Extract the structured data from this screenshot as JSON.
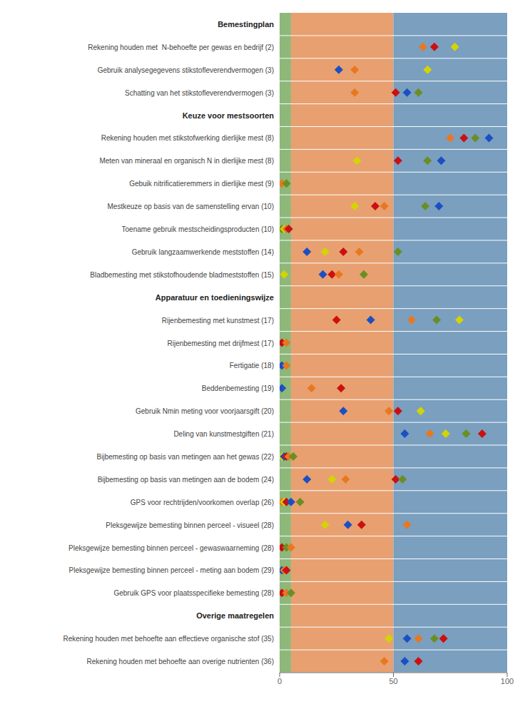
{
  "chart_data": {
    "type": "scatter",
    "marker": "diamond",
    "grid": false,
    "xlim": [
      0,
      100
    ],
    "xticks": [
      0,
      50,
      100
    ],
    "bands": [
      {
        "from": 0,
        "to": 5,
        "color": "#8DB87A"
      },
      {
        "from": 5,
        "to": 50,
        "color": "#E8A070"
      },
      {
        "from": 50,
        "to": 100,
        "color": "#7A9FBF"
      }
    ],
    "headers": [
      "Bemestingplan",
      "Keuze voor mestsoorten",
      "Apparatuur en toedieningswijze",
      "Overige maatregelen"
    ],
    "categories": [
      "Bemestingplan",
      "Rekening houden met  N-behoefte per gewas en bedrijf (2)",
      "Gebruik analysegegevens stikstofleverendvermogen (3)",
      "Schatting van het stikstofleverendvermogen (3)",
      "Keuze voor mestsoorten",
      "Rekening houden met stikstofwerking dierlijke mest (8)",
      "Meten van mineraal en organisch N in dierlijke mest (8)",
      "Gebuik nitrificatieremmers in dierlijke mest (9)",
      "Mestkeuze op basis van de samenstelling ervan (10)",
      "Toename gebruik mestscheidingsproducten (10)",
      "Gebruik langzaamwerkende meststoffen (14)",
      "Bladbemesting met stikstofhoudende bladmeststoffen (15)",
      "Apparatuur en toedieningswijze",
      "Rijenbemesting met kunstmest (17)",
      "Rijenbemesting met drijfmest (17)",
      "Fertigatie (18)",
      "Beddenbemesting (19)",
      "Gebruik Nmin meting voor voorjaarsgift (20)",
      "Deling van kunstmestgiften (21)",
      "Bijbemesting op basis van metingen aan het gewas (22)",
      "Bijbemesting op basis van metingen aan de bodem (24)",
      "GPS voor rechtrijden/voorkomen overlap (26)",
      "Pleksgewijze bemesting binnen perceel - visueel (28)",
      "Pleksgewijze bemesting binnen perceel - gewaswaarneming (28)",
      "Pleksgewijze bemesting binnen perceel - meting aan bodem (29)",
      "Gebruik GPS voor plaatsspecifieke bemesting (28)",
      "Overige maatregelen",
      "Rekening houden met behoefte aan effectieve organische stof (35)",
      "Rekening houden met behoefte aan overige nutrienten (36)"
    ],
    "points": [
      [],
      [
        {
          "x": 63,
          "color": "#E87820"
        },
        {
          "x": 68,
          "color": "#CC1010"
        },
        {
          "x": 77,
          "color": "#D4D400"
        }
      ],
      [
        {
          "x": 26,
          "color": "#1C4FC4"
        },
        {
          "x": 33,
          "color": "#E87820"
        },
        {
          "x": 65,
          "color": "#D4D400"
        }
      ],
      [
        {
          "x": 33,
          "color": "#E87820"
        },
        {
          "x": 51,
          "color": "#CC1010"
        },
        {
          "x": 56,
          "color": "#1C4FC4"
        },
        {
          "x": 61,
          "color": "#6B8E23"
        }
      ],
      [],
      [
        {
          "x": 75,
          "color": "#E87820"
        },
        {
          "x": 81,
          "color": "#CC1010"
        },
        {
          "x": 86,
          "color": "#6B8E23"
        },
        {
          "x": 92,
          "color": "#1C4FC4"
        }
      ],
      [
        {
          "x": 34,
          "color": "#D4D400"
        },
        {
          "x": 52,
          "color": "#CC1010"
        },
        {
          "x": 65,
          "color": "#6B8E23"
        },
        {
          "x": 71,
          "color": "#1C4FC4"
        }
      ],
      [
        {
          "x": 1,
          "color": "#E87820"
        },
        {
          "x": 3,
          "color": "#6B8E23"
        }
      ],
      [
        {
          "x": 33,
          "color": "#D4D400"
        },
        {
          "x": 42,
          "color": "#CC1010"
        },
        {
          "x": 46,
          "color": "#E87820"
        },
        {
          "x": 64,
          "color": "#6B8E23"
        },
        {
          "x": 70,
          "color": "#1C4FC4"
        }
      ],
      [
        {
          "x": 1,
          "color": "#6B8E23"
        },
        {
          "x": 2,
          "color": "#D4D400"
        },
        {
          "x": 3,
          "color": "#E87820"
        },
        {
          "x": 4,
          "color": "#CC1010"
        }
      ],
      [
        {
          "x": 12,
          "color": "#1C4FC4"
        },
        {
          "x": 20,
          "color": "#D4D400"
        },
        {
          "x": 28,
          "color": "#CC1010"
        },
        {
          "x": 35,
          "color": "#E87820"
        },
        {
          "x": 52,
          "color": "#6B8E23"
        }
      ],
      [
        {
          "x": 2,
          "color": "#D4D400"
        },
        {
          "x": 19,
          "color": "#1C4FC4"
        },
        {
          "x": 23,
          "color": "#CC1010"
        },
        {
          "x": 26,
          "color": "#E87820"
        },
        {
          "x": 37,
          "color": "#6B8E23"
        }
      ],
      [],
      [
        {
          "x": 25,
          "color": "#CC1010"
        },
        {
          "x": 40,
          "color": "#1C4FC4"
        },
        {
          "x": 58,
          "color": "#E87820"
        },
        {
          "x": 69,
          "color": "#6B8E23"
        },
        {
          "x": 79,
          "color": "#D4D400"
        }
      ],
      [
        {
          "x": 1,
          "color": "#CC1010"
        },
        {
          "x": 3,
          "color": "#E87820"
        }
      ],
      [
        {
          "x": 1,
          "color": "#1C4FC4"
        },
        {
          "x": 3,
          "color": "#E87820"
        }
      ],
      [
        {
          "x": 1,
          "color": "#1C4FC4"
        },
        {
          "x": 14,
          "color": "#E87820"
        },
        {
          "x": 27,
          "color": "#CC1010"
        }
      ],
      [
        {
          "x": 28,
          "color": "#1C4FC4"
        },
        {
          "x": 48,
          "color": "#E87820"
        },
        {
          "x": 52,
          "color": "#CC1010"
        },
        {
          "x": 62,
          "color": "#D4D400"
        }
      ],
      [
        {
          "x": 55,
          "color": "#1C4FC4"
        },
        {
          "x": 66,
          "color": "#E87820"
        },
        {
          "x": 73,
          "color": "#D4D400"
        },
        {
          "x": 82,
          "color": "#6B8E23"
        },
        {
          "x": 89,
          "color": "#CC1010"
        }
      ],
      [
        {
          "x": 1,
          "color": "#D4D400"
        },
        {
          "x": 2,
          "color": "#1C4FC4"
        },
        {
          "x": 3,
          "color": "#CC1010"
        },
        {
          "x": 4,
          "color": "#E87820"
        },
        {
          "x": 6,
          "color": "#6B8E23"
        }
      ],
      [
        {
          "x": 12,
          "color": "#1C4FC4"
        },
        {
          "x": 23,
          "color": "#D4D400"
        },
        {
          "x": 29,
          "color": "#E87820"
        },
        {
          "x": 51,
          "color": "#CC1010"
        },
        {
          "x": 54,
          "color": "#6B8E23"
        }
      ],
      [
        {
          "x": 1,
          "color": "#E87820"
        },
        {
          "x": 2,
          "color": "#D4D400"
        },
        {
          "x": 3,
          "color": "#CC1010"
        },
        {
          "x": 5,
          "color": "#1C4FC4"
        },
        {
          "x": 9,
          "color": "#6B8E23"
        }
      ],
      [
        {
          "x": 20,
          "color": "#D4D400"
        },
        {
          "x": 30,
          "color": "#1C4FC4"
        },
        {
          "x": 36,
          "color": "#CC1010"
        },
        {
          "x": 56,
          "color": "#E87820"
        }
      ],
      [
        {
          "x": 1,
          "color": "#CC1010"
        },
        {
          "x": 3,
          "color": "#6B8E23"
        },
        {
          "x": 5,
          "color": "#E87820"
        }
      ],
      [
        {
          "x": 1,
          "color": "#1C4FC4"
        },
        {
          "x": 2,
          "color": "#E87820"
        },
        {
          "x": 3,
          "color": "#CC1010"
        }
      ],
      [
        {
          "x": 1,
          "color": "#CC1010"
        },
        {
          "x": 3,
          "color": "#E87820"
        },
        {
          "x": 5,
          "color": "#6B8E23"
        }
      ],
      [],
      [
        {
          "x": 48,
          "color": "#D4D400"
        },
        {
          "x": 56,
          "color": "#1C4FC4"
        },
        {
          "x": 61,
          "color": "#E87820"
        },
        {
          "x": 68,
          "color": "#6B8E23"
        },
        {
          "x": 72,
          "color": "#CC1010"
        }
      ],
      [
        {
          "x": 46,
          "color": "#E87820"
        },
        {
          "x": 55,
          "color": "#1C4FC4"
        },
        {
          "x": 61,
          "color": "#CC1010"
        }
      ]
    ]
  }
}
